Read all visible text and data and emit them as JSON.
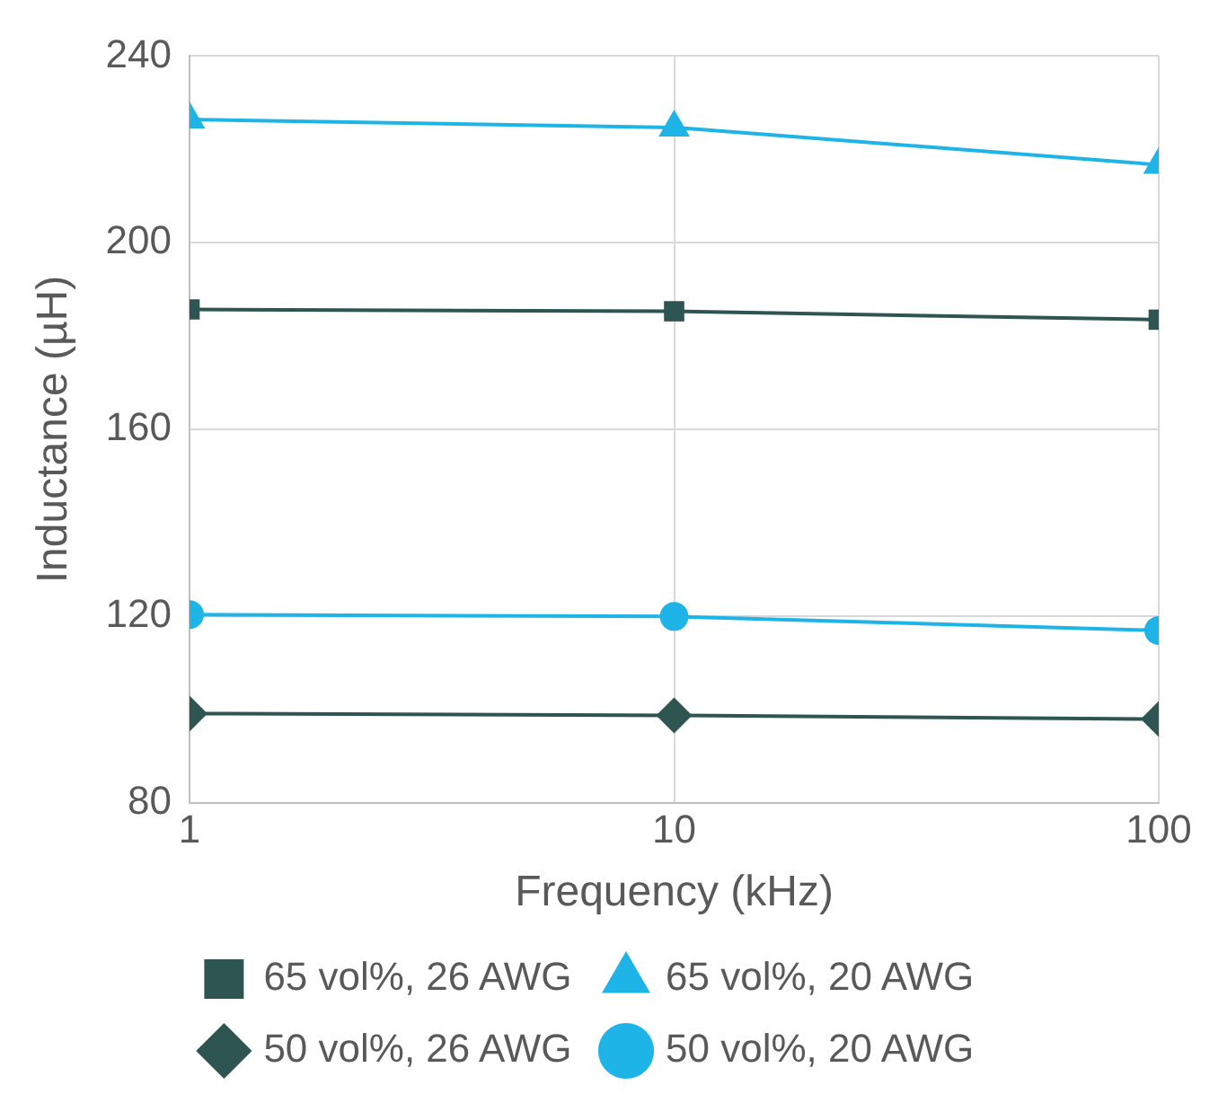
{
  "chart_data": {
    "type": "line",
    "xlabel": "Frequency (kHz)",
    "ylabel": "Inductance (µH)",
    "x": [
      1,
      10,
      100
    ],
    "log": "x",
    "xlim": [
      1,
      100
    ],
    "xticks": [
      1,
      10,
      100
    ],
    "ylim": [
      80,
      240
    ],
    "yticks": [
      80,
      120,
      160,
      200,
      240
    ],
    "grid": true,
    "legend": "bottom",
    "line_style": "solid",
    "series": [
      {
        "name": "65 vol%, 26 AWG",
        "color": "#2e5552",
        "marker": "square",
        "values": [
          185.7,
          185.3,
          183.5
        ]
      },
      {
        "name": "65 vol%, 20 AWG",
        "color": "#1fb4e8",
        "marker": "triangle",
        "values": [
          226.4,
          224.7,
          216.7
        ]
      },
      {
        "name": "50 vol%, 26 AWG",
        "color": "#2e5552",
        "marker": "diamond",
        "values": [
          99.1,
          98.7,
          97.9
        ]
      },
      {
        "name": "50 vol%, 20 AWG",
        "color": "#1fb4e8",
        "marker": "circle",
        "values": [
          120.3,
          119.9,
          116.9
        ]
      }
    ]
  }
}
